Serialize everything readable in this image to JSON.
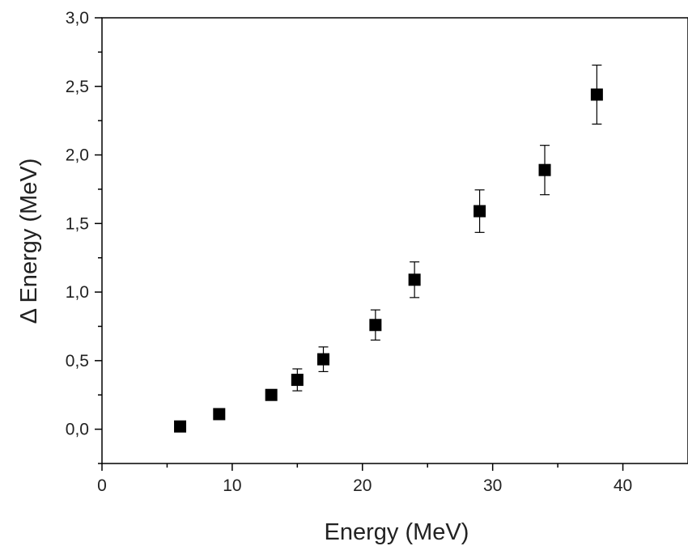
{
  "chart_data": {
    "type": "scatter",
    "title": "",
    "xlabel": "Energy (MeV)",
    "ylabel": "Δ Energy (MeV)",
    "xlim": [
      0,
      45
    ],
    "ylim": [
      -0.25,
      3.0
    ],
    "xticks": [
      0,
      10,
      20,
      30,
      40
    ],
    "xtick_labels": [
      "0",
      "10",
      "20",
      "30",
      "40"
    ],
    "yticks": [
      0.0,
      0.5,
      1.0,
      1.5,
      2.0,
      2.5,
      3.0
    ],
    "ytick_labels": [
      "0,0",
      "0,5",
      "1,0",
      "1,5",
      "2,0",
      "2,5",
      "3,0"
    ],
    "grid": false,
    "marker": "filled-square",
    "marker_color": "#000000",
    "points": [
      {
        "x": 6,
        "y": 0.02,
        "yerr": 0
      },
      {
        "x": 9,
        "y": 0.11,
        "yerr": 0
      },
      {
        "x": 13,
        "y": 0.25,
        "yerr": 0.03
      },
      {
        "x": 15,
        "y": 0.36,
        "yerr": 0.08
      },
      {
        "x": 17,
        "y": 0.51,
        "yerr": 0.09
      },
      {
        "x": 21,
        "y": 0.76,
        "yerr": 0.11
      },
      {
        "x": 24,
        "y": 1.09,
        "yerr": 0.13
      },
      {
        "x": 29,
        "y": 1.59,
        "yerr": 0.155
      },
      {
        "x": 34,
        "y": 1.89,
        "yerr": 0.18
      },
      {
        "x": 38,
        "y": 2.44,
        "yerr": 0.215
      }
    ]
  }
}
